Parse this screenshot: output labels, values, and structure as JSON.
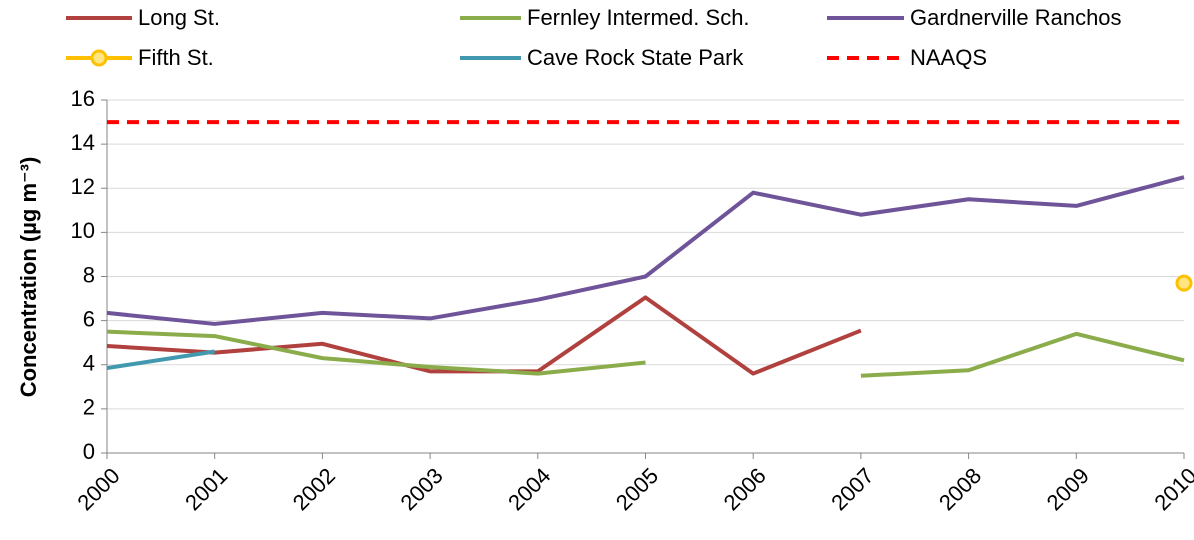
{
  "chart_data": {
    "type": "line",
    "y_label": "Concentration (µg m⁻³)",
    "x": [
      2000,
      2001,
      2002,
      2003,
      2004,
      2005,
      2006,
      2007,
      2008,
      2009,
      2010
    ],
    "xlim": [
      2000,
      2010
    ],
    "xticks": [
      2000,
      2001,
      2002,
      2003,
      2004,
      2005,
      2006,
      2007,
      2008,
      2009,
      2010
    ],
    "ylim": [
      0,
      16
    ],
    "yticks": [
      0,
      2,
      4,
      6,
      8,
      10,
      12,
      14,
      16
    ],
    "grid": true,
    "legend": "top",
    "series": [
      {
        "name": "Long St.",
        "color": "#b0413e",
        "values": [
          4.85,
          4.55,
          4.95,
          3.7,
          3.7,
          7.05,
          3.6,
          5.55,
          null,
          null,
          null
        ]
      },
      {
        "name": "Fernley Intermed. Sch.",
        "color": "#8bac4a",
        "values": [
          5.5,
          5.3,
          4.3,
          3.9,
          3.6,
          4.1,
          null,
          3.5,
          3.75,
          5.4,
          4.2
        ]
      },
      {
        "name": "Gardnerville Ranchos",
        "color": "#6f5499",
        "values": [
          6.35,
          5.85,
          6.35,
          6.1,
          6.95,
          8.0,
          11.8,
          10.8,
          11.5,
          11.2,
          12.5
        ]
      },
      {
        "name": "Fifth St.",
        "color": "#ffc000",
        "marker": "circle",
        "values": [
          null,
          null,
          null,
          null,
          null,
          null,
          null,
          null,
          null,
          null,
          7.7
        ]
      },
      {
        "name": "Cave Rock State Park",
        "color": "#4198af",
        "values": [
          3.85,
          4.6,
          null,
          null,
          null,
          null,
          null,
          null,
          null,
          null,
          null
        ]
      },
      {
        "name": "NAAQS",
        "color": "#ff0000",
        "dash": true,
        "values": [
          15,
          15,
          15,
          15,
          15,
          15,
          15,
          15,
          15,
          15,
          15
        ]
      }
    ]
  }
}
